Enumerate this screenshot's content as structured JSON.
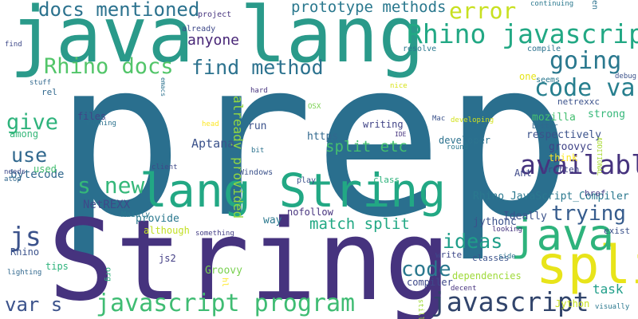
{
  "palette": {
    "dark-purple": "#440154",
    "indigo": "#414487",
    "blue": "#2a788e",
    "teal": "#22a884",
    "green": "#44bf70",
    "light-green": "#7ad151",
    "lime": "#bddf26",
    "yellow": "#fde725"
  },
  "words": [
    {
      "text": "prep",
      "color": "#2a6f8e"
    },
    {
      "text": "String",
      "color": "#46337e"
    },
    {
      "text": "java lang",
      "color": "#2a9a8a"
    },
    {
      "text": "lang String",
      "color": "#22a884"
    },
    {
      "text": "split",
      "color": "#e8e41a"
    },
    {
      "text": "java",
      "color": "#2eb37c"
    },
    {
      "text": "javascript",
      "color": "#31446b"
    },
    {
      "text": "Rhino javascript",
      "color": "#22a884"
    },
    {
      "text": "javascript program",
      "color": "#3fbc73"
    },
    {
      "text": "code var",
      "color": "#277f8e"
    },
    {
      "text": "available",
      "color": "#46337e"
    },
    {
      "text": "Rhino docs",
      "color": "#52c569"
    },
    {
      "text": "find method",
      "color": "#2c728e"
    },
    {
      "text": "docs mentioned",
      "color": "#2c728e"
    },
    {
      "text": "prototype methods",
      "color": "#2a788e"
    },
    {
      "text": "error",
      "color": "#c8e020"
    },
    {
      "text": "going",
      "color": "#2a788e"
    },
    {
      "text": "s new",
      "color": "#35b779"
    },
    {
      "text": "trying",
      "color": "#365c8d"
    },
    {
      "text": "give",
      "color": "#2eb37c"
    },
    {
      "text": "use",
      "color": "#31688e"
    },
    {
      "text": "js",
      "color": "#3b528b"
    },
    {
      "text": "var s",
      "color": "#3b528b"
    },
    {
      "text": "code",
      "color": "#2a788e"
    },
    {
      "text": "ideas",
      "color": "#1f9e89"
    },
    {
      "text": "match split",
      "color": "#22a884"
    },
    {
      "text": "split etc",
      "color": "#44bf70"
    },
    {
      "text": "anyone",
      "color": "#482677"
    },
    {
      "text": "already provided",
      "color": "#93d741"
    },
    {
      "text": "Aptana",
      "color": "#3b528b"
    },
    {
      "text": "NetREXX",
      "color": "#3e4989"
    },
    {
      "text": "bytecode",
      "color": "#31688e"
    },
    {
      "text": "Rhino_JavaScript_Compiler",
      "color": "#2a788e"
    },
    {
      "text": "groovyc",
      "color": "#404387"
    },
    {
      "text": "Groovy",
      "color": "#7ad151"
    },
    {
      "text": "jythonc",
      "color": "#3b528b"
    },
    {
      "text": "Ideally",
      "color": "#3b528b"
    },
    {
      "text": "task",
      "color": "#1f9e89"
    },
    {
      "text": "compiler",
      "color": "#3e4989"
    },
    {
      "text": "dependencies",
      "color": "#9fda3a"
    },
    {
      "text": "developer",
      "color": "#2c728e"
    },
    {
      "text": "respectively",
      "color": "#3b528b"
    },
    {
      "text": "strong",
      "color": "#35b779"
    },
    {
      "text": "mozilla",
      "color": "#44bf70"
    },
    {
      "text": "netrexxc",
      "color": "#3b528b"
    },
    {
      "text": "writing",
      "color": "#414487"
    },
    {
      "text": "https",
      "color": "#31688e"
    },
    {
      "text": "run",
      "color": "#3b528b"
    },
    {
      "text": "way",
      "color": "#2a788e"
    },
    {
      "text": "nofollow",
      "color": "#46337e"
    },
    {
      "text": "provide",
      "color": "#2a788e"
    },
    {
      "text": "although",
      "color": "#c2df23"
    },
    {
      "text": "js2",
      "color": "#433e85"
    },
    {
      "text": "tips",
      "color": "#2eb37c"
    },
    {
      "text": "Rhino",
      "color": "#3b528b"
    },
    {
      "text": "Jython",
      "color": "#c8e020"
    },
    {
      "text": "exist",
      "color": "#3b528b"
    },
    {
      "text": "classes",
      "color": "#3b528b"
    },
    {
      "text": "write",
      "color": "#3e4989"
    },
    {
      "text": "href",
      "color": "#433e85"
    },
    {
      "text": "written",
      "color": "#404387"
    },
    {
      "text": "think",
      "color": "#fde725"
    },
    {
      "text": "Ant",
      "color": "#3e4989"
    },
    {
      "text": "class",
      "color": "#2eb37c"
    },
    {
      "text": "play",
      "color": "#3b528b"
    },
    {
      "text": "Windows",
      "color": "#3b528b"
    },
    {
      "text": "Mainly",
      "color": "#2a788e"
    },
    {
      "text": "something",
      "color": "#433e85"
    },
    {
      "text": "files",
      "color": "#414487"
    },
    {
      "text": "running",
      "color": "#2c728e"
    },
    {
      "text": "among",
      "color": "#35b779"
    },
    {
      "text": "used",
      "color": "#44bf70"
    },
    {
      "text": "needs",
      "color": "#3e4989"
    },
    {
      "text": "atop",
      "color": "#31688e"
    },
    {
      "text": "lighting",
      "color": "#31688e"
    },
    {
      "text": "org",
      "color": "#2eb37c"
    },
    {
      "text": "hl",
      "color": "#fde725"
    },
    {
      "text": "side",
      "color": "#2c728e"
    },
    {
      "text": "looking",
      "color": "#46337e"
    },
    {
      "text": "decent",
      "color": "#46337e"
    },
    {
      "text": "still",
      "color": "#a0da39"
    },
    {
      "text": "visually",
      "color": "#2a788e"
    },
    {
      "text": "round",
      "color": "#2a788e"
    },
    {
      "text": "Mac",
      "color": "#3b528b"
    },
    {
      "text": "developing",
      "color": "#d2e21b"
    },
    {
      "text": "IDE",
      "color": "#46337e"
    },
    {
      "text": "OSX",
      "color": "#7ad151"
    },
    {
      "text": "head",
      "color": "#fde725"
    },
    {
      "text": "bit",
      "color": "#2c728e"
    },
    {
      "text": "client",
      "color": "#3e4989"
    },
    {
      "text": "hard",
      "color": "#46337e"
    },
    {
      "text": "nice",
      "color": "#d8e219"
    },
    {
      "text": "seems",
      "color": "#2a788e"
    },
    {
      "text": "one",
      "color": "#e5e419"
    },
    {
      "text": "better",
      "color": "#31688e"
    },
    {
      "text": "ADDITIONAL",
      "color": "#a8db34"
    },
    {
      "text": "debug",
      "color": "#3b528b"
    },
    {
      "text": "compile",
      "color": "#2c728e"
    },
    {
      "text": "resolve",
      "color": "#2a788e"
    },
    {
      "text": "continuing",
      "color": "#2a788e"
    },
    {
      "text": "en",
      "color": "#2c728e"
    },
    {
      "text": "project",
      "color": "#46337e"
    },
    {
      "text": "already",
      "color": "#3e4989"
    },
    {
      "text": "emacs",
      "color": "#2c728e"
    },
    {
      "text": "stuff",
      "color": "#31688e"
    },
    {
      "text": "rel",
      "color": "#31688e"
    },
    {
      "text": "find",
      "color": "#3e4989"
    }
  ]
}
